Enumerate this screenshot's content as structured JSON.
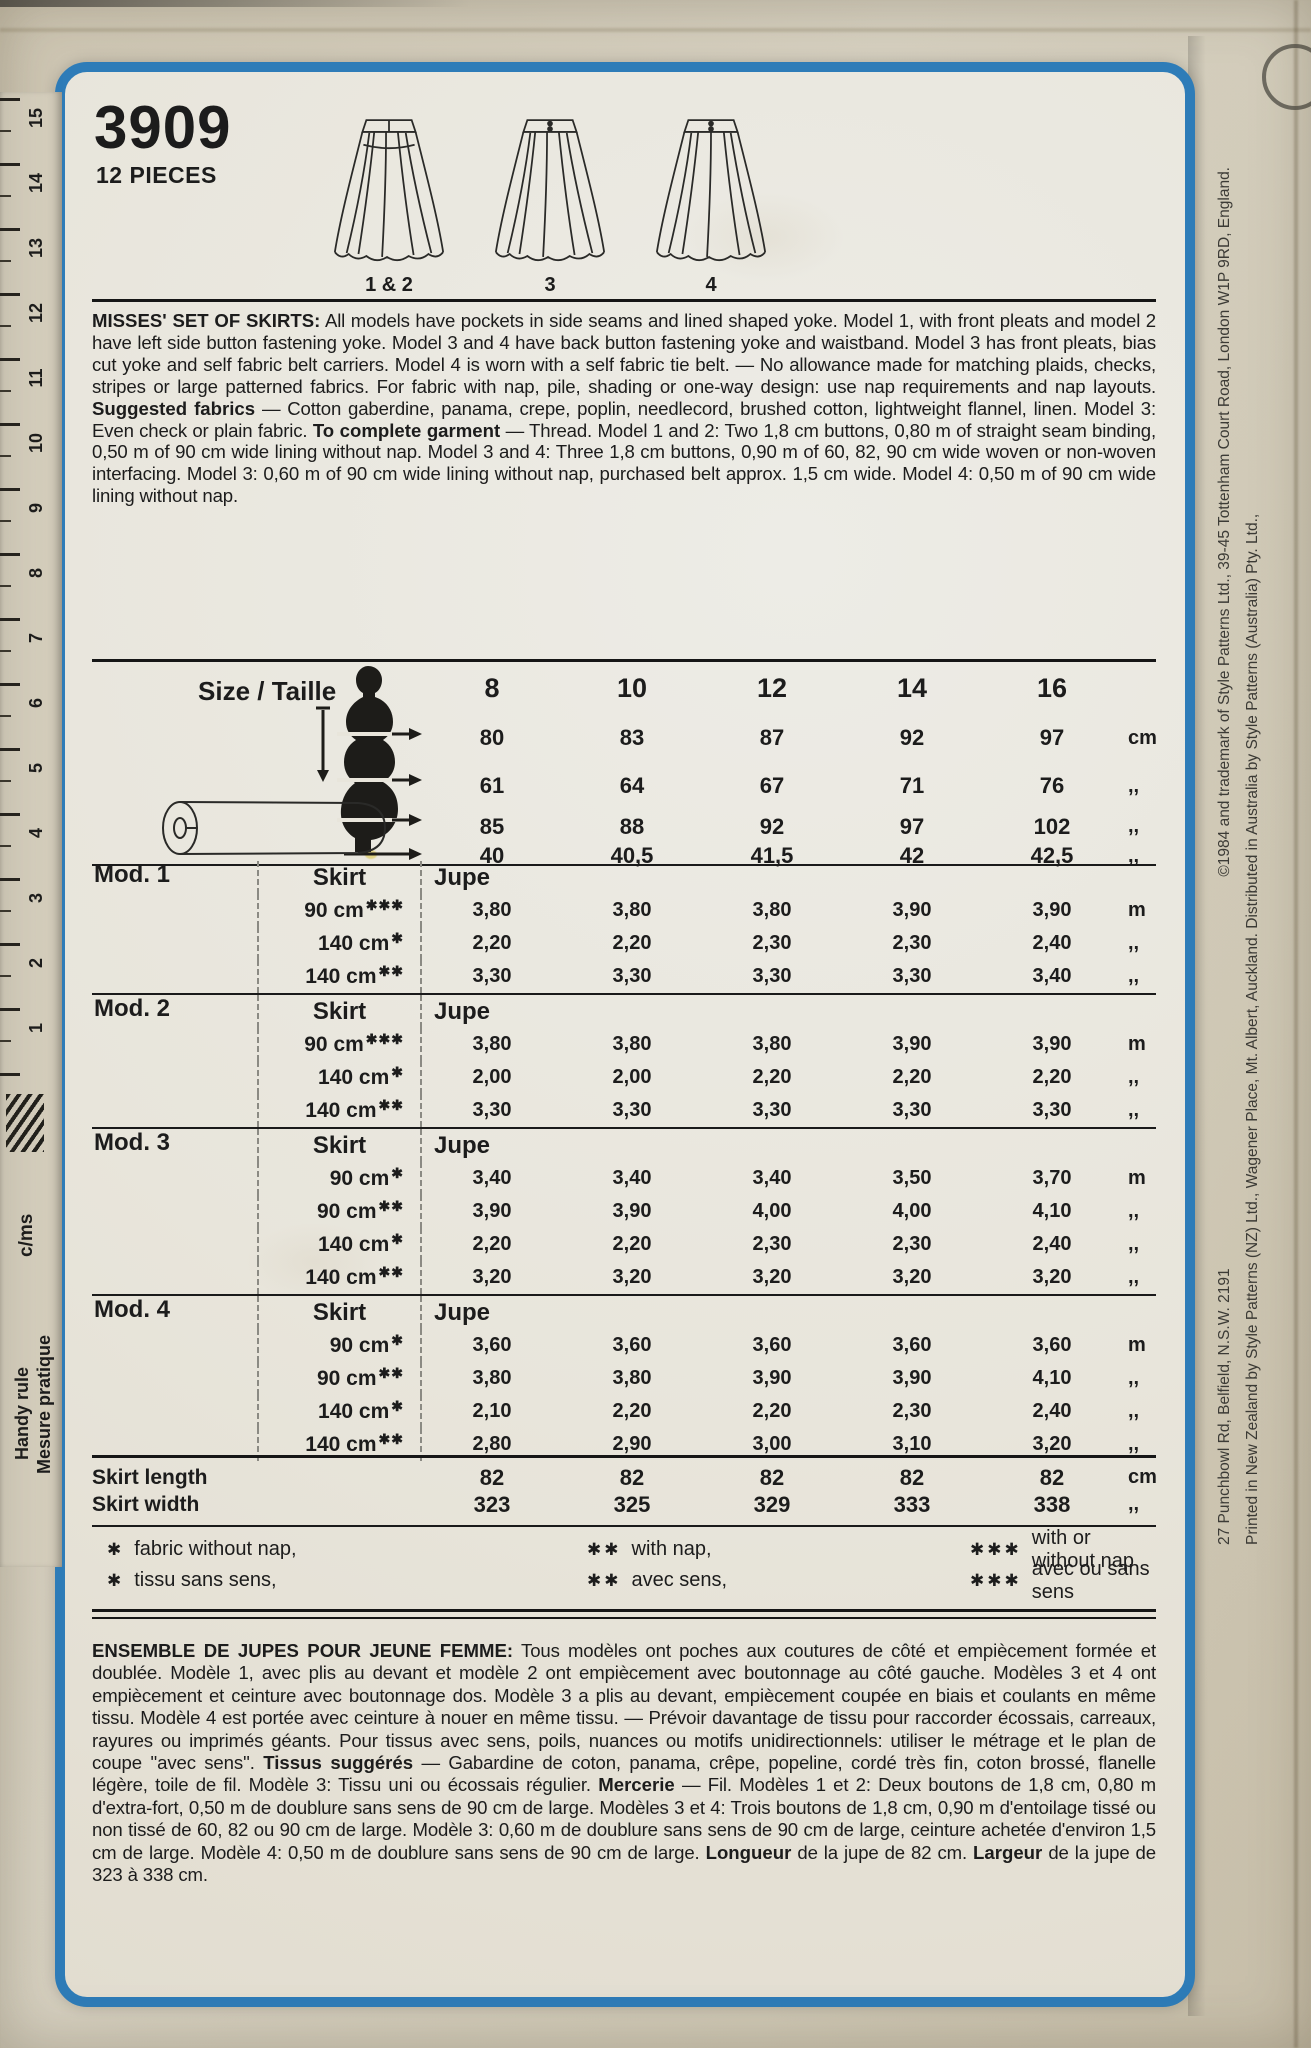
{
  "pattern": {
    "number": "3909",
    "pieces": "12 PIECES"
  },
  "views": {
    "labels": [
      "1 & 2",
      "3",
      "4"
    ]
  },
  "description_en": {
    "title": "MISSES' SET OF SKIRTS:",
    "body1": "All models have pockets in side seams and lined shaped yoke. Model 1, with front pleats and model 2 have left side button fastening yoke. Model 3 and 4 have back button fastening yoke and waistband. Model 3 has front pleats, bias cut yoke and self fabric belt carriers. Model 4 is worn with a self fabric tie belt. — No allowance made for matching plaids, checks, stripes or large patterned fabrics. For fabric with nap, pile, shading or one-way design: use nap requirements and nap layouts.",
    "suggested_label": "Suggested fabrics",
    "body2": "— Cotton gaberdine, panama, crepe, poplin, needlecord, brushed cotton, lightweight flannel, linen. Model 3: Even check or plain fabric.",
    "complete_label": "To complete garment",
    "body3": "— Thread. Model 1 and 2: Two 1,8 cm buttons, 0,80 m of straight seam binding, 0,50 m of 90 cm wide lining without nap. Model 3 and 4: Three 1,8 cm buttons, 0,90 m of 60, 82, 90 cm wide woven or non-woven interfacing. Model 3: 0,60 m of 90 cm wide lining without nap, purchased belt approx. 1,5 cm wide. Model 4: 0,50 m of 90 cm wide lining without nap."
  },
  "size_table": {
    "label": "Size / Taille",
    "sizes": [
      "8",
      "10",
      "12",
      "14",
      "16"
    ],
    "rows": [
      {
        "values": [
          "80",
          "83",
          "87",
          "92",
          "97"
        ],
        "unit": "cm"
      },
      {
        "values": [
          "61",
          "64",
          "67",
          "71",
          "76"
        ],
        "unit": ",,"
      },
      {
        "values": [
          "85",
          "88",
          "92",
          "97",
          "102"
        ],
        "unit": ",,"
      },
      {
        "values": [
          "40",
          "40,5",
          "41,5",
          "42",
          "42,5"
        ],
        "unit": ",,"
      }
    ]
  },
  "yardage_tables": [
    {
      "model": "Mod. 1",
      "garment_en": "Skirt",
      "garment_fr": "Jupe",
      "rows": [
        {
          "width": "90 cm",
          "marks": "✱✱✱",
          "values": [
            "3,80",
            "3,80",
            "3,80",
            "3,90",
            "3,90"
          ],
          "unit": "m"
        },
        {
          "width": "140 cm",
          "marks": "✱",
          "values": [
            "2,20",
            "2,20",
            "2,30",
            "2,30",
            "2,40"
          ],
          "unit": ",,"
        },
        {
          "width": "140 cm",
          "marks": "✱✱",
          "values": [
            "3,30",
            "3,30",
            "3,30",
            "3,30",
            "3,40"
          ],
          "unit": ",,"
        }
      ]
    },
    {
      "model": "Mod. 2",
      "garment_en": "Skirt",
      "garment_fr": "Jupe",
      "rows": [
        {
          "width": "90 cm",
          "marks": "✱✱✱",
          "values": [
            "3,80",
            "3,80",
            "3,80",
            "3,90",
            "3,90"
          ],
          "unit": "m"
        },
        {
          "width": "140 cm",
          "marks": "✱",
          "values": [
            "2,00",
            "2,00",
            "2,20",
            "2,20",
            "2,20"
          ],
          "unit": ",,"
        },
        {
          "width": "140 cm",
          "marks": "✱✱",
          "values": [
            "3,30",
            "3,30",
            "3,30",
            "3,30",
            "3,30"
          ],
          "unit": ",,"
        }
      ]
    },
    {
      "model": "Mod. 3",
      "garment_en": "Skirt",
      "garment_fr": "Jupe",
      "rows": [
        {
          "width": "90 cm",
          "marks": "✱",
          "values": [
            "3,40",
            "3,40",
            "3,40",
            "3,50",
            "3,70"
          ],
          "unit": "m"
        },
        {
          "width": "90 cm",
          "marks": "✱✱",
          "values": [
            "3,90",
            "3,90",
            "4,00",
            "4,00",
            "4,10"
          ],
          "unit": ",,"
        },
        {
          "width": "140 cm",
          "marks": "✱",
          "values": [
            "2,20",
            "2,20",
            "2,30",
            "2,30",
            "2,40"
          ],
          "unit": ",,"
        },
        {
          "width": "140 cm",
          "marks": "✱✱",
          "values": [
            "3,20",
            "3,20",
            "3,20",
            "3,20",
            "3,20"
          ],
          "unit": ",,"
        }
      ]
    },
    {
      "model": "Mod. 4",
      "garment_en": "Skirt",
      "garment_fr": "Jupe",
      "rows": [
        {
          "width": "90 cm",
          "marks": "✱",
          "values": [
            "3,60",
            "3,60",
            "3,60",
            "3,60",
            "3,60"
          ],
          "unit": "m"
        },
        {
          "width": "90 cm",
          "marks": "✱✱",
          "values": [
            "3,80",
            "3,80",
            "3,90",
            "3,90",
            "4,10"
          ],
          "unit": ",,"
        },
        {
          "width": "140 cm",
          "marks": "✱",
          "values": [
            "2,10",
            "2,20",
            "2,20",
            "2,30",
            "2,40"
          ],
          "unit": ",,"
        },
        {
          "width": "140 cm",
          "marks": "✱✱",
          "values": [
            "2,80",
            "2,90",
            "3,00",
            "3,10",
            "3,20"
          ],
          "unit": ",,"
        }
      ]
    }
  ],
  "measurements": {
    "rows": [
      {
        "label": "Skirt length",
        "values": [
          "82",
          "82",
          "82",
          "82",
          "82"
        ],
        "unit": "cm"
      },
      {
        "label": "Skirt width",
        "values": [
          "323",
          "325",
          "329",
          "333",
          "338"
        ],
        "unit": ",,"
      }
    ]
  },
  "footnotes": [
    {
      "marks": "✱",
      "en": "fabric without nap,",
      "fr": "tissu sans sens,"
    },
    {
      "marks": "✱✱",
      "en": "with nap,",
      "fr": "avec sens,"
    },
    {
      "marks": "✱✱✱",
      "en": "with or without nap",
      "fr": "avec ou sans sens"
    }
  ],
  "description_fr": {
    "title": "ENSEMBLE DE JUPES POUR JEUNE FEMME:",
    "body1": "Tous modèles ont poches aux coutures de côté et empiècement formée et doublée. Modèle 1, avec plis au devant et modèle 2 ont empiècement avec boutonnage au côté gauche. Modèles 3 et 4 ont empiècement et ceinture avec boutonnage dos. Modèle 3 a plis au devant, empiècement coupée en biais et coulants en même tissu. Modèle 4 est portée avec ceinture à nouer en même tissu. — Prévoir davantage de tissu pour raccorder écossais, carreaux, rayures ou imprimés géants. Pour tissus avec sens, poils, nuances ou motifs unidirectionnels: utiliser le métrage et le plan de coupe ''avec sens''.",
    "suggested_label": "Tissus suggérés",
    "body2": "— Gabardine de coton, panama, crêpe, popeline, cordé très fin, coton brossé, flanelle légère, toile de fil. Modèle 3: Tissu uni ou écossais régulier.",
    "mercerie_label": "Mercerie",
    "body3": "— Fil. Modèles 1 et 2: Deux boutons de 1,8 cm, 0,80 m d'extra-fort, 0,50 m de doublure sans sens de 90 cm de large. Modèles 3 et 4: Trois boutons de 1,8 cm, 0,90 m d'entoilage tissé ou non tissé de 60, 82 ou 90 cm de large. Modèle 3: 0,60 m de doublure sans sens de 90 cm de large, ceinture achetée d'environ 1,5 cm de large. Modèle 4: 0,50 m de doublure sans sens de 90 cm de large.",
    "longueur_label": "Longueur",
    "body4": "de la jupe de 82 cm.",
    "largeur_label": "Largeur",
    "body5": "de la jupe de 323 à 338 cm."
  },
  "ruler": {
    "numbers": [
      "15",
      "14",
      "13",
      "12",
      "11",
      "10",
      "9",
      "8",
      "7",
      "6",
      "5",
      "4",
      "3",
      "2",
      "1"
    ],
    "unit_label": "c/ms",
    "label_en": "Handy rule",
    "label_fr": "Mesure pratique"
  },
  "margin_print": {
    "line1": "Printed in New Zealand by Style Patterns (NZ) Ltd., Wagener Place, Mt. Albert, Auckland. Distributed in Australia by Style Patterns (Australia) Pty. Ltd.,",
    "line2a": "27 Punchbowl Rd, Belfield, N.S.W. 2191",
    "line2b": "©1984 and trademark of Style Patterns Ltd., 39-45 Tottenham Court Road, London W1P 9RD, England."
  },
  "colors": {
    "frame_blue": "#2e7cb8",
    "paper": "#e8e5db",
    "envelope": "#d2cbb9",
    "ink": "#1c1c1c"
  }
}
